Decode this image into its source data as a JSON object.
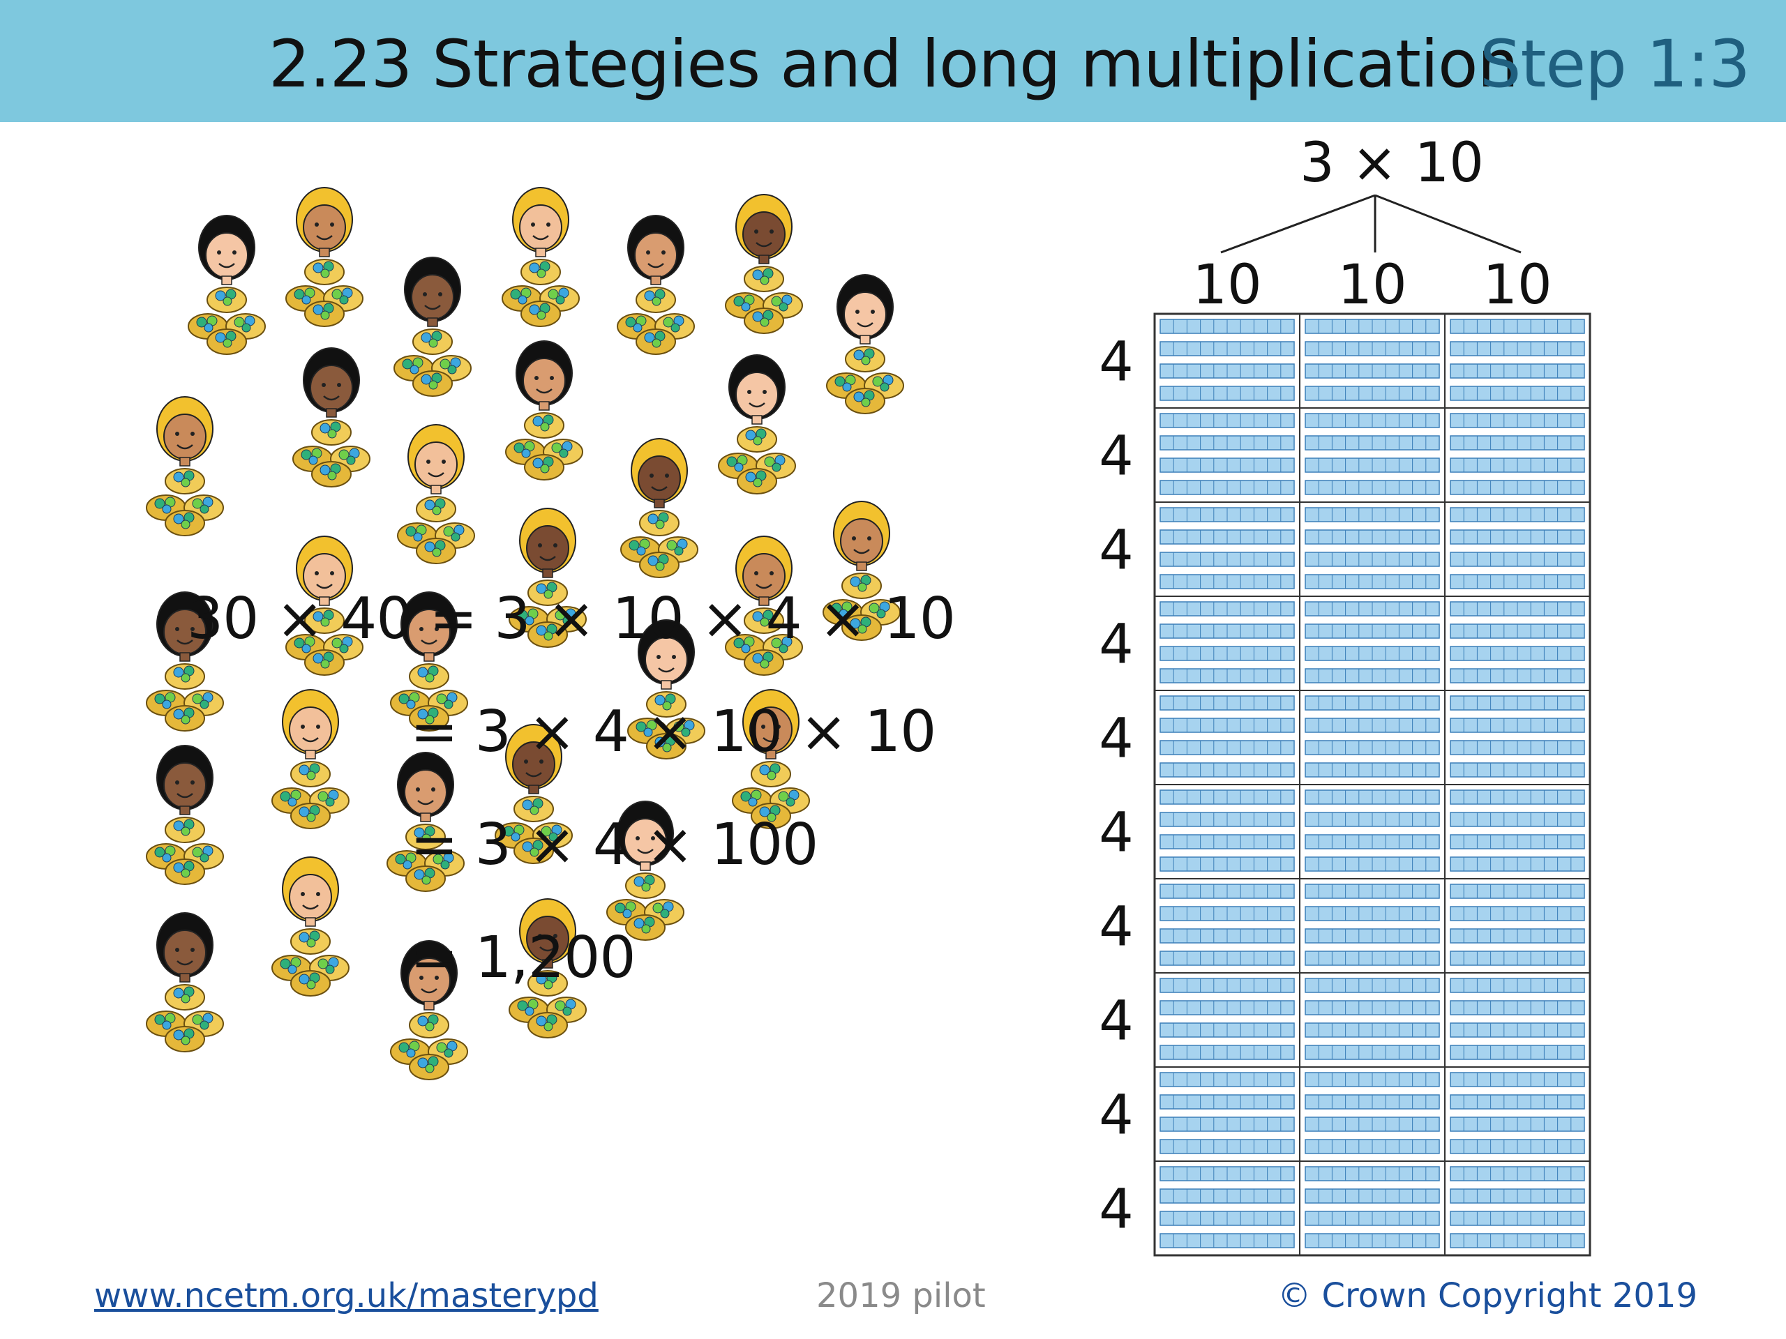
{
  "header": {
    "title": "2.23 Strategies and long multiplication",
    "step": "Step 1:3"
  },
  "colors": {
    "header_bg": "#7ec8de",
    "step_text": "#1f5f7f",
    "cell_fill": "#a7d3ef",
    "cell_stroke": "#3c7fb8",
    "link": "#1a4f9c"
  },
  "illustration": {
    "kind": "children each with a pile of 4 bags",
    "children_count": 30,
    "bags_per_child": 4
  },
  "equation": {
    "line1": "30 × 40 = 3 × 10 × 4 × 10",
    "line2": "= 3 × 4 × 10 × 10",
    "line3": "= 3 × 4 × 100",
    "line4": "= 1,200"
  },
  "diagram": {
    "top_label": "3 × 10",
    "column_labels": [
      "10",
      "10",
      "10"
    ],
    "row_labels": [
      "4",
      "4",
      "4",
      "4",
      "4",
      "4",
      "4",
      "4",
      "4",
      "4"
    ]
  },
  "footer": {
    "link": "www.ncetm.org.uk/masterypd",
    "pilot": "2019 pilot",
    "copyright": "© Crown Copyright 2019"
  }
}
